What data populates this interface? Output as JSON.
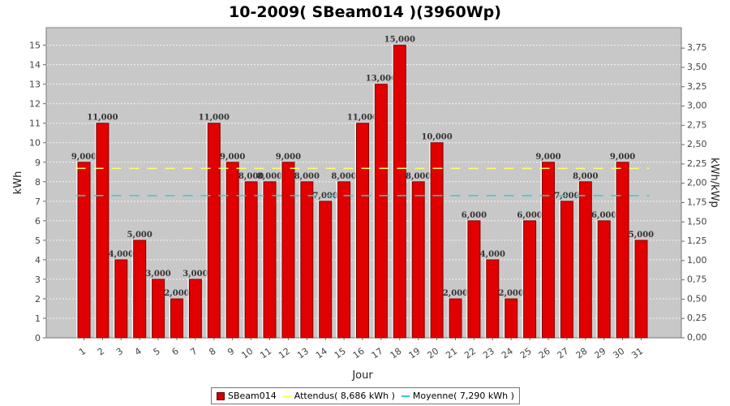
{
  "chart_data": {
    "type": "bar",
    "title": "10-2009( SBeam014 )(3960Wp)",
    "xlabel": "Jour",
    "ylabel": "kWh",
    "y2label": "kWh/kWp",
    "ylim": [
      0,
      15.9
    ],
    "y2lim": [
      0,
      4.015
    ],
    "yticks": [
      "0",
      "1",
      "2",
      "3",
      "4",
      "5",
      "6",
      "7",
      "8",
      "9",
      "10",
      "11",
      "12",
      "13",
      "14",
      "15"
    ],
    "y2ticks": [
      "0,00",
      "0,25",
      "0,50",
      "0,75",
      "1,00",
      "1,25",
      "1,50",
      "1,75",
      "2,00",
      "2,25",
      "2,50",
      "2,75",
      "3,00",
      "3,25",
      "3,50",
      "3,75"
    ],
    "categories": [
      "1",
      "2",
      "3",
      "4",
      "5",
      "6",
      "7",
      "8",
      "9",
      "10",
      "11",
      "12",
      "13",
      "14",
      "15",
      "16",
      "17",
      "18",
      "19",
      "20",
      "21",
      "22",
      "23",
      "24",
      "25",
      "26",
      "27",
      "28",
      "29",
      "30",
      "31"
    ],
    "series": [
      {
        "name": "SBeam014",
        "values": [
          9,
          11,
          4,
          5,
          3,
          2,
          3,
          11,
          9,
          8,
          8,
          9,
          8,
          7,
          8,
          11,
          13,
          15,
          8,
          10,
          2,
          6,
          4,
          2,
          6,
          9,
          7,
          8,
          6,
          9,
          5
        ],
        "labels": [
          "9,000",
          "11,000",
          "4,000",
          "5,000",
          "3,000",
          "2,000",
          "3,000",
          "11,000",
          "9,000",
          "8,000",
          "8,000",
          "9,000",
          "8,000",
          "7,000",
          "8,000",
          "11,000",
          "13,000",
          "15,000",
          "8,000",
          "10,000",
          "2,000",
          "6,000",
          "4,000",
          "2,000",
          "6,000",
          "9,000",
          "7,000",
          "8,000",
          "6,000",
          "9,000",
          "5,000"
        ],
        "color": "#e00000"
      }
    ],
    "reference_lines": [
      {
        "name": "Attendus",
        "value": 8.686,
        "color": "#ffff66",
        "legend": "Attendus( 8,686 kWh )"
      },
      {
        "name": "Moyenne",
        "value": 7.29,
        "color": "#33cccc",
        "legend": "Moyenne( 7,290 kWh )"
      }
    ],
    "legend_placement": "bottom",
    "grid": true,
    "plot_background": "#c8c8c8"
  },
  "legend": {
    "items": [
      {
        "label": "SBeam014",
        "color": "#cc0000",
        "kind": "box"
      },
      {
        "label": "Attendus( 8,686 kWh )",
        "color": "#ffff66",
        "kind": "line"
      },
      {
        "label": "Moyenne( 7,290 kWh )",
        "color": "#33cccc",
        "kind": "line"
      }
    ]
  }
}
